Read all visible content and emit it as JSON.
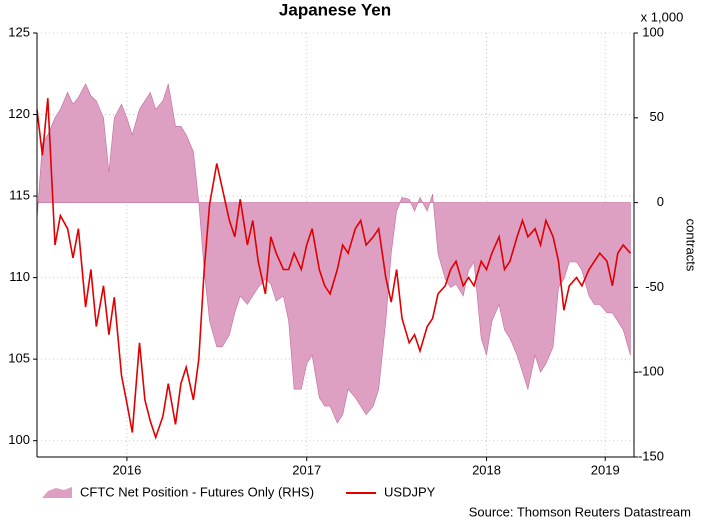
{
  "chart_data": {
    "type": "line",
    "title": "Japanese Yen",
    "y2_unit_label": "x 1,000",
    "y2label": "contracts",
    "source": "Source: Thomson Reuters Datastream",
    "x": [
      2016.0,
      2016.03,
      2016.06,
      2016.1,
      2016.13,
      2016.17,
      2016.2,
      2016.23,
      2016.27,
      2016.3,
      2016.33,
      2016.37,
      2016.4,
      2016.43,
      2016.47,
      2016.5,
      2016.53,
      2016.57,
      2016.6,
      2016.63,
      2016.66,
      2016.7,
      2016.73,
      2016.77,
      2016.8,
      2016.83,
      2016.87,
      2016.9,
      2016.93,
      2016.96,
      2017.0,
      2017.03,
      2017.07,
      2017.1,
      2017.13,
      2017.17,
      2017.2,
      2017.23,
      2017.27,
      2017.3,
      2017.33,
      2017.37,
      2017.4,
      2017.43,
      2017.47,
      2017.5,
      2017.53,
      2017.57,
      2017.6,
      2017.63,
      2017.67,
      2017.7,
      2017.73,
      2017.77,
      2017.8,
      2017.83,
      2017.87,
      2017.9,
      2017.94,
      2017.97,
      2018.0,
      2018.03,
      2018.07,
      2018.1,
      2018.13,
      2018.17,
      2018.2,
      2018.23,
      2018.27,
      2018.3,
      2018.33,
      2018.37,
      2018.4,
      2018.43,
      2018.47,
      2018.5,
      2018.53,
      2018.57,
      2018.6,
      2018.63,
      2018.67,
      2018.7,
      2018.73,
      2018.77,
      2018.8,
      2018.83,
      2018.87,
      2018.9,
      2018.93,
      2018.96,
      2019.0,
      2019.03,
      2019.07,
      2019.1,
      2019.13,
      2019.17,
      2019.2,
      2019.23,
      2019.26,
      2019.3
    ],
    "xlim": [
      2016.0,
      2019.32
    ],
    "xticks": [
      {
        "value": 2016.5,
        "label": "2016"
      },
      {
        "value": 2017.5,
        "label": "2017"
      },
      {
        "value": 2018.5,
        "label": "2018"
      },
      {
        "value": 2019.16,
        "label": "2019"
      }
    ],
    "ylim": [
      99,
      125
    ],
    "yticks": [
      100,
      105,
      110,
      115,
      120,
      125
    ],
    "y2lim": [
      -150,
      100
    ],
    "y2ticks": [
      -150,
      -100,
      -50,
      0,
      50,
      100
    ],
    "grid": true,
    "series": [
      {
        "name": "CFTC Net Position - Futures Only (RHS)",
        "type": "area",
        "axis": "y2",
        "color": "#dda0c3",
        "values": [
          -10,
          35,
          40,
          50,
          55,
          65,
          58,
          62,
          70,
          63,
          60,
          50,
          18,
          50,
          58,
          50,
          40,
          55,
          60,
          65,
          55,
          60,
          70,
          45,
          45,
          40,
          30,
          0,
          -40,
          -70,
          -85,
          -85,
          -78,
          -65,
          -55,
          -60,
          -55,
          -50,
          -45,
          -48,
          -58,
          -55,
          -70,
          -110,
          -110,
          -95,
          -90,
          -115,
          -120,
          -120,
          -130,
          -125,
          -110,
          -115,
          -120,
          -125,
          -120,
          -110,
          -70,
          -30,
          -5,
          3,
          2,
          -5,
          3,
          -5,
          5,
          -30,
          -45,
          -50,
          -48,
          -55,
          -40,
          -35,
          -80,
          -90,
          -70,
          -60,
          -75,
          -80,
          -90,
          -100,
          -110,
          -90,
          -100,
          -95,
          -85,
          -50,
          -45,
          -35,
          -35,
          -40,
          -55,
          -60,
          -60,
          -65,
          -65,
          -70,
          -75,
          -90
        ]
      },
      {
        "name": "USDJPY",
        "type": "line",
        "color": "#e00000",
        "values": [
          120.3,
          117.5,
          121.0,
          112.0,
          113.8,
          113.0,
          111.2,
          113.0,
          108.2,
          110.5,
          107.0,
          109.5,
          106.5,
          108.8,
          104.0,
          102.3,
          100.5,
          106.0,
          102.5,
          101.2,
          100.2,
          101.5,
          103.5,
          101.0,
          103.5,
          104.5,
          102.5,
          105.0,
          110.5,
          114.5,
          117.0,
          115.5,
          113.5,
          112.5,
          114.8,
          112.0,
          113.5,
          111.0,
          109.0,
          112.5,
          111.5,
          110.5,
          110.5,
          111.5,
          110.5,
          112.0,
          113.0,
          110.5,
          109.5,
          109.0,
          110.5,
          112.0,
          111.5,
          113.0,
          113.5,
          112.0,
          112.5,
          113.0,
          110.0,
          108.5,
          110.5,
          107.5,
          106.0,
          106.5,
          105.5,
          107.0,
          107.5,
          109.0,
          109.5,
          110.5,
          111.0,
          109.5,
          110.0,
          109.5,
          111.0,
          110.5,
          111.5,
          112.5,
          110.5,
          111.0,
          112.5,
          113.5,
          112.5,
          113.0,
          112.0,
          113.5,
          112.5,
          111.0,
          108.0,
          109.5,
          110.0,
          109.5,
          110.5,
          111.0,
          111.5,
          111.0,
          109.5,
          111.5,
          112.0,
          111.5
        ]
      }
    ]
  }
}
